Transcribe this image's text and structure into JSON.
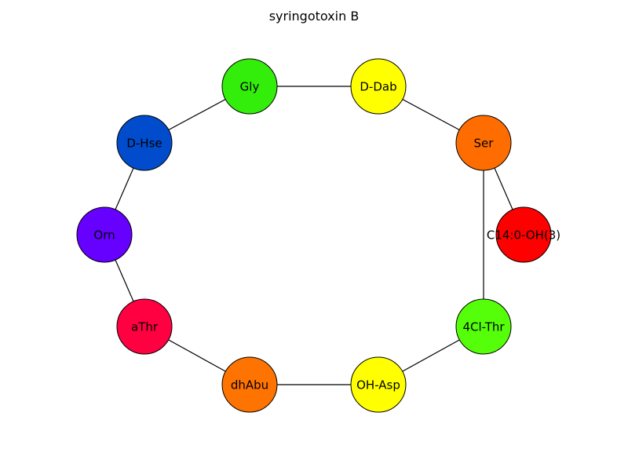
{
  "title": "syringotoxin B",
  "nodes": [
    {
      "id": "gly",
      "label": "Gly",
      "color": "#33ee0a"
    },
    {
      "id": "ddab",
      "label": "D-Dab",
      "color": "#ffff00"
    },
    {
      "id": "ser",
      "label": "Ser",
      "color": "#ff6d00"
    },
    {
      "id": "c14",
      "label": "C14:0-OH(3)",
      "color": "#ff0000"
    },
    {
      "id": "dhse",
      "label": "D-Hse",
      "color": "#004ccc"
    },
    {
      "id": "orn",
      "label": "Orn",
      "color": "#6600ff"
    },
    {
      "id": "athr",
      "label": "aThr",
      "color": "#ff0040"
    },
    {
      "id": "dhabu",
      "label": "dhAbu",
      "color": "#ff7300"
    },
    {
      "id": "ohasp",
      "label": "OH-Asp",
      "color": "#ffff00"
    },
    {
      "id": "clthr",
      "label": "4Cl-Thr",
      "color": "#55ff0a"
    }
  ],
  "edges": [
    [
      "gly",
      "ddab"
    ],
    [
      "ddab",
      "ser"
    ],
    [
      "ser",
      "c14"
    ],
    [
      "ser",
      "clthr"
    ],
    [
      "gly",
      "dhse"
    ],
    [
      "dhse",
      "orn"
    ],
    [
      "orn",
      "athr"
    ],
    [
      "athr",
      "dhabu"
    ],
    [
      "dhabu",
      "ohasp"
    ],
    [
      "ohasp",
      "clthr"
    ]
  ]
}
